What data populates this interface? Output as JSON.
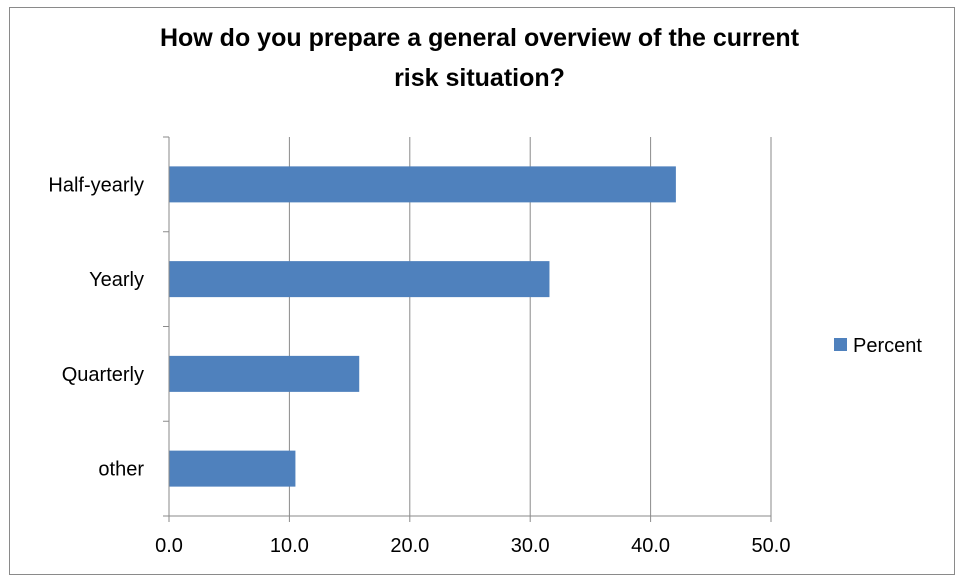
{
  "chart_data": {
    "type": "bar",
    "orientation": "horizontal",
    "title_lines": [
      "How do you prepare a general overview of the current",
      "risk situation?"
    ],
    "categories": [
      "Half-yearly",
      "Yearly",
      "Quarterly",
      "other"
    ],
    "series": [
      {
        "name": "Percent",
        "values": [
          42.1,
          31.6,
          15.8,
          10.5
        ],
        "color": "#4f81bd"
      }
    ],
    "xlim": [
      0,
      50
    ],
    "x_ticks": [
      "0.0",
      "10.0",
      "20.0",
      "30.0",
      "40.0",
      "50.0"
    ],
    "grid": true,
    "legend_position": "right"
  }
}
